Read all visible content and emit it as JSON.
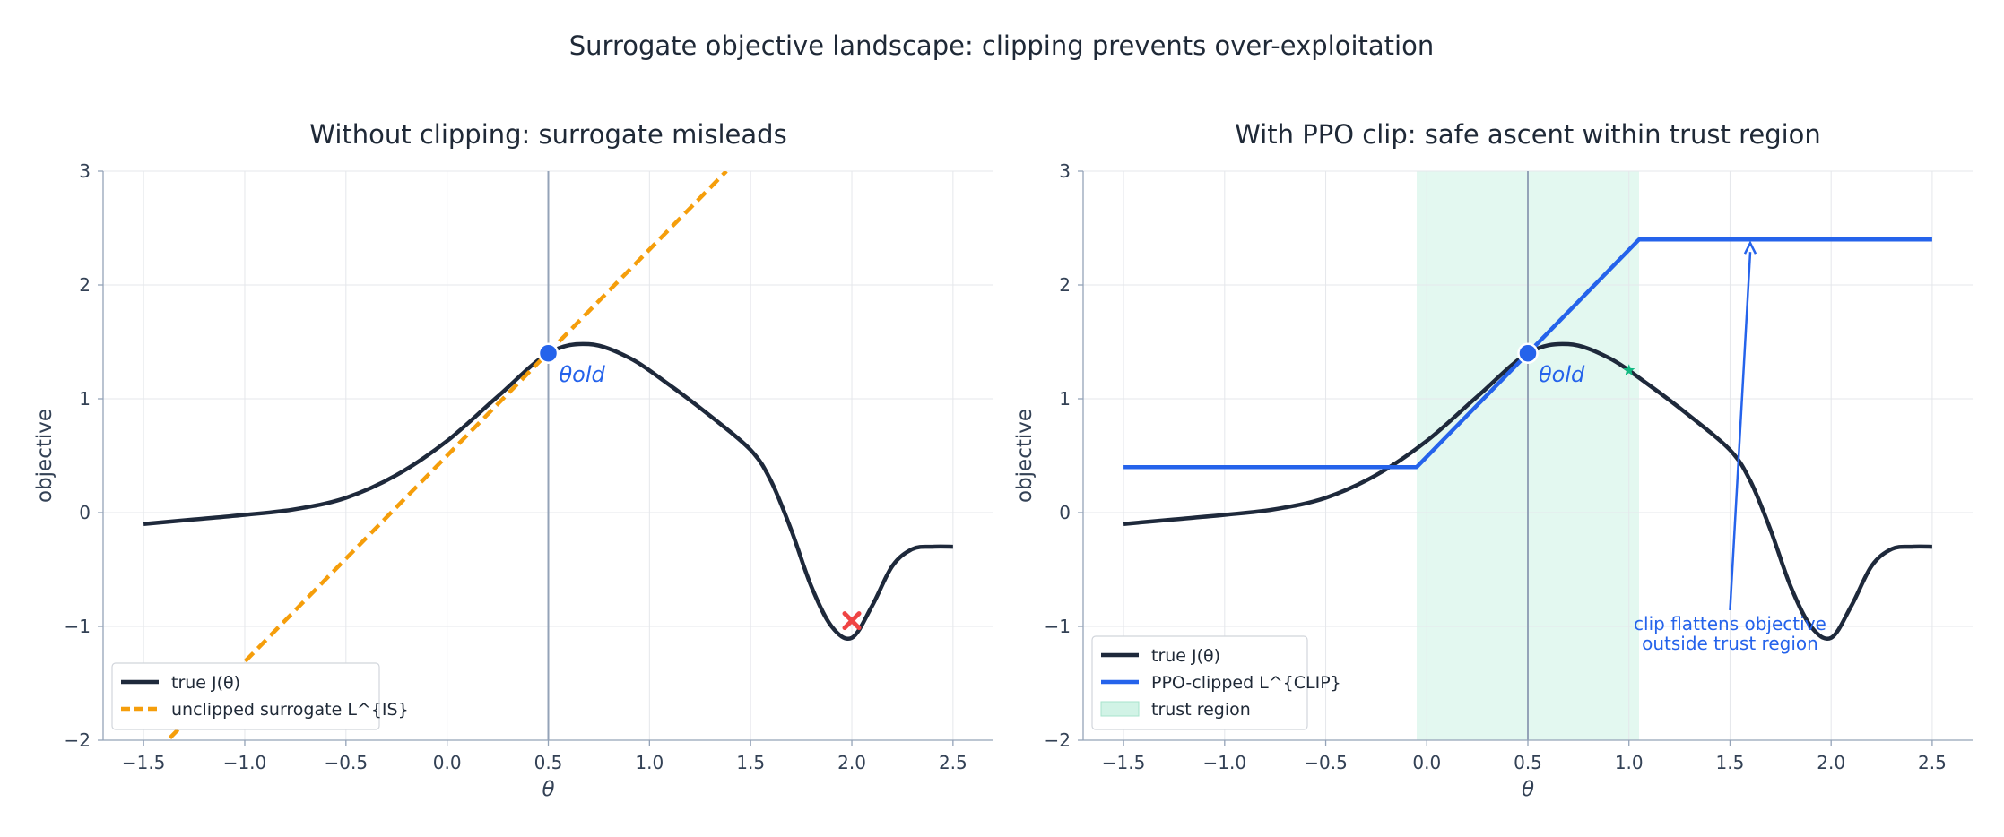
{
  "figure_title": "Surrogate objective landscape: clipping prevents over-exploitation",
  "colors": {
    "true_curve": "#1e293b",
    "unclipped": "#f59e0b",
    "clipped": "#2563eb",
    "trust_region": "#d1f3e6",
    "marker_x": "#ef4444",
    "marker_star": "#10b981",
    "vline": "#94a3b8"
  },
  "chart_data": [
    {
      "type": "line",
      "title": "Without clipping: surrogate misleads",
      "xlabel": "θ",
      "ylabel": "objective",
      "xlim": [
        -1.7,
        2.7
      ],
      "ylim": [
        -2,
        3
      ],
      "xticks": [
        -1.5,
        -1.0,
        -0.5,
        0.0,
        0.5,
        1.0,
        1.5,
        2.0,
        2.5
      ],
      "xtick_labels": [
        "−1.5",
        "−1.0",
        "−0.5",
        "0.0",
        "0.5",
        "1.0",
        "1.5",
        "2.0",
        "2.5"
      ],
      "yticks": [
        -2,
        -1,
        0,
        1,
        2,
        3
      ],
      "ytick_labels": [
        "−2",
        "−1",
        "0",
        "1",
        "2",
        "3"
      ],
      "grid": true,
      "legend_position": "lower-left",
      "theta_old": {
        "x": 0.5,
        "y": 1.4,
        "label": "θold"
      },
      "series": [
        {
          "name": "true J(θ)",
          "style": "solid",
          "x": [
            -1.5,
            -1.25,
            -1.0,
            -0.75,
            -0.5,
            -0.25,
            0.0,
            0.25,
            0.5,
            0.7,
            0.9,
            1.1,
            1.3,
            1.5,
            1.6,
            1.7,
            1.8,
            1.9,
            2.0,
            2.1,
            2.2,
            2.3,
            2.4,
            2.5
          ],
          "y": [
            -0.1,
            -0.06,
            -0.02,
            0.03,
            0.13,
            0.33,
            0.63,
            1.02,
            1.4,
            1.48,
            1.36,
            1.12,
            0.85,
            0.55,
            0.28,
            -0.15,
            -0.65,
            -1.0,
            -1.1,
            -0.82,
            -0.47,
            -0.32,
            -0.3,
            -0.3
          ]
        },
        {
          "name": "unclipped surrogate L^{IS}",
          "style": "dashed",
          "x": [
            -1.37,
            1.38
          ],
          "y": [
            -1.98,
            3.0
          ]
        }
      ],
      "markers": [
        {
          "kind": "x",
          "x": 2.0,
          "y": -0.95
        }
      ]
    },
    {
      "type": "line",
      "title": "With PPO clip: safe ascent within trust region",
      "xlabel": "θ",
      "ylabel": "objective",
      "xlim": [
        -1.7,
        2.7
      ],
      "ylim": [
        -2,
        3
      ],
      "xticks": [
        -1.5,
        -1.0,
        -0.5,
        0.0,
        0.5,
        1.0,
        1.5,
        2.0,
        2.5
      ],
      "xtick_labels": [
        "−1.5",
        "−1.0",
        "−0.5",
        "0.0",
        "0.5",
        "1.0",
        "1.5",
        "2.0",
        "2.5"
      ],
      "yticks": [
        -2,
        -1,
        0,
        1,
        2,
        3
      ],
      "ytick_labels": [
        "−2",
        "−1",
        "0",
        "1",
        "2",
        "3"
      ],
      "grid": true,
      "legend_position": "lower-left",
      "theta_old": {
        "x": 0.5,
        "y": 1.4,
        "label": "θold"
      },
      "trust_region": {
        "x0": -0.05,
        "x1": 1.05,
        "name": "trust region"
      },
      "series": [
        {
          "name": "true J(θ)",
          "style": "solid",
          "x": [
            -1.5,
            -1.25,
            -1.0,
            -0.75,
            -0.5,
            -0.25,
            0.0,
            0.25,
            0.5,
            0.7,
            0.9,
            1.1,
            1.3,
            1.5,
            1.6,
            1.7,
            1.8,
            1.9,
            2.0,
            2.1,
            2.2,
            2.3,
            2.4,
            2.5
          ],
          "y": [
            -0.1,
            -0.06,
            -0.02,
            0.03,
            0.13,
            0.33,
            0.63,
            1.02,
            1.4,
            1.48,
            1.36,
            1.12,
            0.85,
            0.55,
            0.28,
            -0.15,
            -0.65,
            -1.0,
            -1.1,
            -0.82,
            -0.47,
            -0.32,
            -0.3,
            -0.3
          ]
        },
        {
          "name": "PPO-clipped L^{CLIP}",
          "style": "solid",
          "x": [
            -1.5,
            -0.05,
            1.05,
            2.5
          ],
          "y": [
            0.4,
            0.4,
            2.4,
            2.4
          ]
        }
      ],
      "markers": [
        {
          "kind": "star",
          "x": 1.0,
          "y": 1.25
        }
      ],
      "annotation": {
        "lines": [
          "clip flattens objective",
          "outside trust region"
        ],
        "text_x": 1.5,
        "text_y": -1.0,
        "arrow_to": [
          1.6,
          2.4
        ]
      }
    }
  ]
}
